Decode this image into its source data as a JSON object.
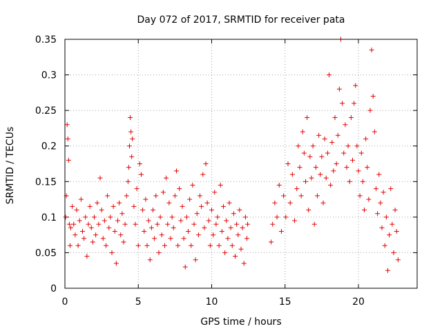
{
  "chart_data": {
    "type": "scatter",
    "title": "Day 072 of 2017, SRMTID for receiver pata",
    "xlabel": "GPS time / hours",
    "ylabel": "SRMTID / TECUs",
    "xlim": [
      0,
      24
    ],
    "ylim": [
      0,
      0.35
    ],
    "xticks": [
      0,
      5,
      10,
      15,
      20
    ],
    "xtick_labels": [
      "0",
      "5",
      "10",
      "15",
      "20"
    ],
    "yticks": [
      0,
      0.05,
      0.1,
      0.15,
      0.2,
      0.25,
      0.3,
      0.35
    ],
    "ytick_labels": [
      "0",
      "0.05",
      "0.1",
      "0.15",
      "0.2",
      "0.25",
      "0.3",
      "0.35"
    ],
    "grid": true,
    "marker": "+",
    "series": [
      {
        "name": "SRMTID",
        "color": "#e00000",
        "points": [
          [
            0.05,
            0.1
          ],
          [
            0.1,
            0.13
          ],
          [
            0.15,
            0.23
          ],
          [
            0.2,
            0.21
          ],
          [
            0.25,
            0.18
          ],
          [
            0.3,
            0.09
          ],
          [
            0.35,
            0.06
          ],
          [
            0.4,
            0.085
          ],
          [
            0.5,
            0.115
          ],
          [
            0.6,
            0.09
          ],
          [
            0.7,
            0.075
          ],
          [
            0.8,
            0.11
          ],
          [
            0.9,
            0.06
          ],
          [
            1.0,
            0.095
          ],
          [
            1.1,
            0.125
          ],
          [
            1.2,
            0.08
          ],
          [
            1.3,
            0.07
          ],
          [
            1.4,
            0.1
          ],
          [
            1.5,
            0.045
          ],
          [
            1.6,
            0.09
          ],
          [
            1.7,
            0.115
          ],
          [
            1.8,
            0.085
          ],
          [
            1.9,
            0.065
          ],
          [
            2.0,
            0.1
          ],
          [
            2.1,
            0.075
          ],
          [
            2.2,
            0.12
          ],
          [
            2.3,
            0.09
          ],
          [
            2.4,
            0.155
          ],
          [
            2.5,
            0.11
          ],
          [
            2.6,
            0.07
          ],
          [
            2.7,
            0.095
          ],
          [
            2.8,
            0.06
          ],
          [
            2.9,
            0.13
          ],
          [
            3.0,
            0.085
          ],
          [
            3.1,
            0.1
          ],
          [
            3.2,
            0.05
          ],
          [
            3.3,
            0.115
          ],
          [
            3.4,
            0.08
          ],
          [
            3.5,
            0.035
          ],
          [
            3.6,
            0.095
          ],
          [
            3.7,
            0.12
          ],
          [
            3.8,
            0.075
          ],
          [
            3.9,
            0.105
          ],
          [
            4.0,
            0.065
          ],
          [
            4.1,
            0.09
          ],
          [
            4.2,
            0.13
          ],
          [
            4.3,
            0.15
          ],
          [
            4.35,
            0.17
          ],
          [
            4.4,
            0.2
          ],
          [
            4.45,
            0.24
          ],
          [
            4.5,
            0.22
          ],
          [
            4.55,
            0.185
          ],
          [
            4.6,
            0.21
          ],
          [
            4.7,
            0.115
          ],
          [
            4.8,
            0.09
          ],
          [
            4.9,
            0.14
          ],
          [
            5.0,
            0.06
          ],
          [
            5.1,
            0.175
          ],
          [
            5.2,
            0.16
          ],
          [
            5.3,
            0.11
          ],
          [
            5.4,
            0.08
          ],
          [
            5.5,
            0.125
          ],
          [
            5.6,
            0.06
          ],
          [
            5.7,
            0.095
          ],
          [
            5.8,
            0.04
          ],
          [
            5.9,
            0.085
          ],
          [
            6.0,
            0.11
          ],
          [
            6.1,
            0.07
          ],
          [
            6.2,
            0.13
          ],
          [
            6.3,
            0.09
          ],
          [
            6.4,
            0.05
          ],
          [
            6.5,
            0.1
          ],
          [
            6.6,
            0.075
          ],
          [
            6.7,
            0.135
          ],
          [
            6.8,
            0.06
          ],
          [
            6.9,
            0.155
          ],
          [
            7.0,
            0.09
          ],
          [
            7.1,
            0.12
          ],
          [
            7.2,
            0.07
          ],
          [
            7.3,
            0.1
          ],
          [
            7.4,
            0.085
          ],
          [
            7.5,
            0.13
          ],
          [
            7.6,
            0.165
          ],
          [
            7.7,
            0.06
          ],
          [
            7.8,
            0.14
          ],
          [
            7.9,
            0.095
          ],
          [
            8.0,
            0.115
          ],
          [
            8.1,
            0.07
          ],
          [
            8.2,
            0.03
          ],
          [
            8.3,
            0.1
          ],
          [
            8.4,
            0.08
          ],
          [
            8.5,
            0.125
          ],
          [
            8.6,
            0.06
          ],
          [
            8.7,
            0.145
          ],
          [
            8.8,
            0.09
          ],
          [
            8.9,
            0.04
          ],
          [
            9.0,
            0.105
          ],
          [
            9.1,
            0.075
          ],
          [
            9.2,
            0.13
          ],
          [
            9.3,
            0.115
          ],
          [
            9.4,
            0.16
          ],
          [
            9.5,
            0.085
          ],
          [
            9.6,
            0.175
          ],
          [
            9.7,
            0.12
          ],
          [
            9.8,
            0.095
          ],
          [
            9.9,
            0.06
          ],
          [
            10.0,
            0.11
          ],
          [
            10.1,
            0.075
          ],
          [
            10.2,
            0.135
          ],
          [
            10.3,
            0.09
          ],
          [
            10.4,
            0.1
          ],
          [
            10.5,
            0.06
          ],
          [
            10.6,
            0.145
          ],
          [
            10.7,
            0.08
          ],
          [
            10.8,
            0.115
          ],
          [
            10.9,
            0.05
          ],
          [
            11.0,
            0.095
          ],
          [
            11.1,
            0.07
          ],
          [
            11.2,
            0.12
          ],
          [
            11.3,
            0.085
          ],
          [
            11.4,
            0.06
          ],
          [
            11.5,
            0.105
          ],
          [
            11.6,
            0.045
          ],
          [
            11.7,
            0.09
          ],
          [
            11.8,
            0.075
          ],
          [
            11.9,
            0.11
          ],
          [
            12.0,
            0.055
          ],
          [
            12.1,
            0.085
          ],
          [
            12.2,
            0.035
          ],
          [
            12.3,
            0.1
          ],
          [
            12.4,
            0.07
          ],
          [
            12.45,
            0.09
          ],
          [
            14.05,
            0.065
          ],
          [
            14.15,
            0.09
          ],
          [
            14.3,
            0.12
          ],
          [
            14.45,
            0.1
          ],
          [
            14.6,
            0.145
          ],
          [
            14.75,
            0.08
          ],
          [
            14.9,
            0.13
          ],
          [
            15.05,
            0.1
          ],
          [
            15.2,
            0.175
          ],
          [
            15.35,
            0.12
          ],
          [
            15.5,
            0.16
          ],
          [
            15.65,
            0.095
          ],
          [
            15.8,
            0.14
          ],
          [
            15.9,
            0.2
          ],
          [
            16.0,
            0.17
          ],
          [
            16.1,
            0.13
          ],
          [
            16.2,
            0.22
          ],
          [
            16.3,
            0.19
          ],
          [
            16.4,
            0.15
          ],
          [
            16.5,
            0.24
          ],
          [
            16.6,
            0.11
          ],
          [
            16.7,
            0.185
          ],
          [
            16.8,
            0.155
          ],
          [
            16.9,
            0.2
          ],
          [
            17.0,
            0.09
          ],
          [
            17.1,
            0.17
          ],
          [
            17.2,
            0.13
          ],
          [
            17.3,
            0.215
          ],
          [
            17.4,
            0.16
          ],
          [
            17.5,
            0.185
          ],
          [
            17.6,
            0.12
          ],
          [
            17.7,
            0.21
          ],
          [
            17.8,
            0.155
          ],
          [
            17.9,
            0.19
          ],
          [
            18.0,
            0.3
          ],
          [
            18.1,
            0.145
          ],
          [
            18.2,
            0.205
          ],
          [
            18.3,
            0.165
          ],
          [
            18.4,
            0.24
          ],
          [
            18.5,
            0.175
          ],
          [
            18.6,
            0.215
          ],
          [
            18.7,
            0.28
          ],
          [
            18.8,
            0.35
          ],
          [
            18.9,
            0.26
          ],
          [
            19.0,
            0.19
          ],
          [
            19.1,
            0.23
          ],
          [
            19.2,
            0.17
          ],
          [
            19.3,
            0.2
          ],
          [
            19.4,
            0.15
          ],
          [
            19.5,
            0.24
          ],
          [
            19.6,
            0.18
          ],
          [
            19.7,
            0.26
          ],
          [
            19.8,
            0.285
          ],
          [
            19.9,
            0.2
          ],
          [
            20.0,
            0.165
          ],
          [
            20.1,
            0.13
          ],
          [
            20.2,
            0.19
          ],
          [
            20.3,
            0.15
          ],
          [
            20.4,
            0.11
          ],
          [
            20.5,
            0.21
          ],
          [
            20.6,
            0.17
          ],
          [
            20.7,
            0.125
          ],
          [
            20.8,
            0.25
          ],
          [
            20.9,
            0.335
          ],
          [
            21.0,
            0.27
          ],
          [
            21.1,
            0.22
          ],
          [
            21.2,
            0.14
          ],
          [
            21.3,
            0.105
          ],
          [
            21.4,
            0.16
          ],
          [
            21.5,
            0.12
          ],
          [
            21.6,
            0.085
          ],
          [
            21.7,
            0.135
          ],
          [
            21.8,
            0.06
          ],
          [
            21.9,
            0.1
          ],
          [
            22.0,
            0.025
          ],
          [
            22.1,
            0.075
          ],
          [
            22.2,
            0.14
          ],
          [
            22.3,
            0.09
          ],
          [
            22.4,
            0.05
          ],
          [
            22.5,
            0.11
          ],
          [
            22.6,
            0.08
          ],
          [
            22.7,
            0.04
          ]
        ]
      }
    ]
  }
}
